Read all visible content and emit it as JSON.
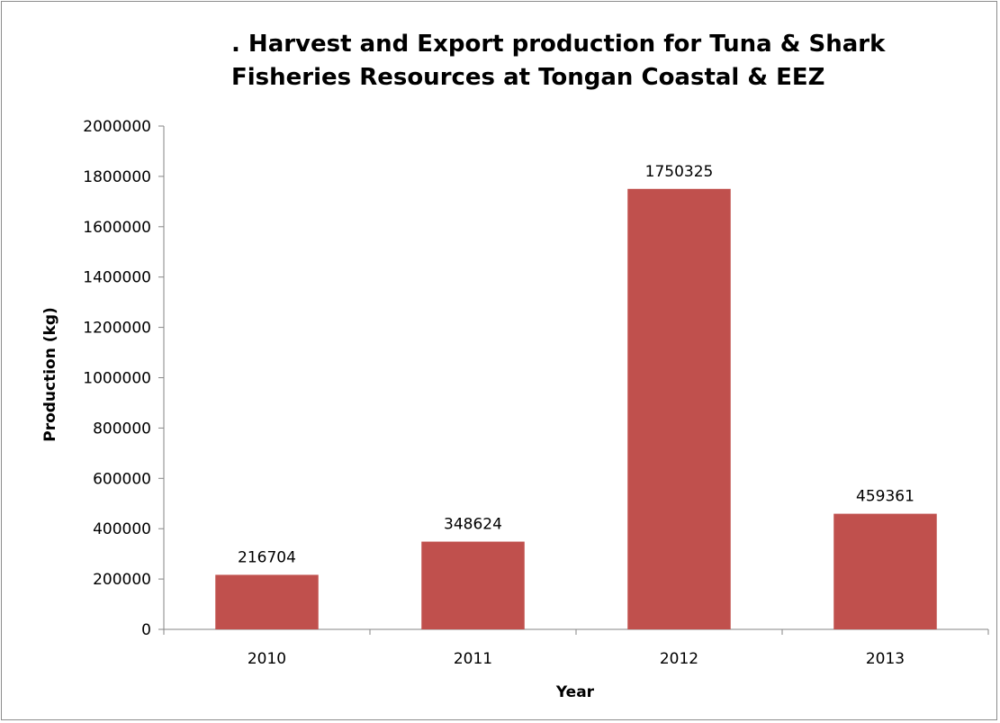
{
  "chart_data": {
    "type": "bar",
    "title_lines": [
      ". Harvest and Export production for Tuna & Shark",
      "Fisheries Resources at Tongan Coastal & EEZ"
    ],
    "xlabel": "Year",
    "ylabel": "Production (kg)",
    "categories": [
      "2010",
      "2011",
      "2012",
      "2013"
    ],
    "values": [
      216704,
      348624,
      1750325,
      459361
    ],
    "data_labels": [
      "216704",
      "348624",
      "1750325",
      "459361"
    ],
    "ylim": [
      0,
      2000000
    ],
    "yticks": [
      0,
      200000,
      400000,
      600000,
      800000,
      1000000,
      1200000,
      1400000,
      1600000,
      1800000,
      2000000
    ],
    "ytick_labels": [
      "0",
      "200000",
      "400000",
      "600000",
      "800000",
      "1000000",
      "1200000",
      "1400000",
      "1600000",
      "1800000",
      "2000000"
    ],
    "grid": false,
    "legend": "none",
    "bar_color": "#c0504d",
    "axis_color": "#868686"
  }
}
